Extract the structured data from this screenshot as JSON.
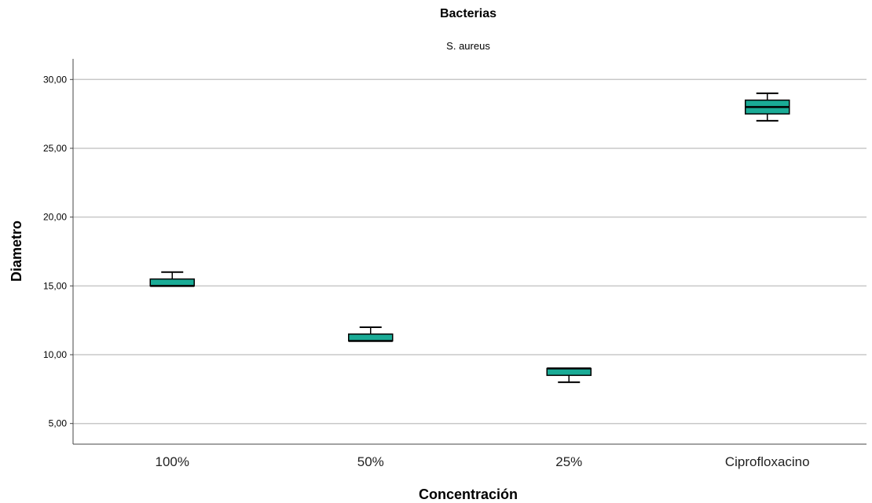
{
  "chart_data": {
    "type": "boxplot",
    "title": "Bacterias",
    "subtitle": "S. aureus",
    "xlabel": "Concentración",
    "ylabel": "Diametro",
    "ylim": [
      3.5,
      31.5
    ],
    "y_ticks": [
      5,
      10,
      15,
      20,
      25,
      30
    ],
    "y_tick_labels": [
      "5,00",
      "10,00",
      "15,00",
      "20,00",
      "25,00",
      "30,00"
    ],
    "grid": true,
    "grid_axis": "y",
    "categories": [
      "100%",
      "50%",
      "25%",
      "Ciprofloxacino"
    ],
    "boxes": [
      {
        "category": "100%",
        "whisker_low": 15,
        "q1": 15,
        "median": 15,
        "q3": 15.5,
        "whisker_high": 16
      },
      {
        "category": "50%",
        "whisker_low": 11,
        "q1": 11,
        "median": 11,
        "q3": 11.5,
        "whisker_high": 12
      },
      {
        "category": "25%",
        "whisker_low": 8,
        "q1": 8.5,
        "median": 9,
        "q3": 9,
        "whisker_high": 9
      },
      {
        "category": "Ciprofloxacino",
        "whisker_low": 27,
        "q1": 27.5,
        "median": 28,
        "q3": 28.5,
        "whisker_high": 29
      }
    ],
    "colors": {
      "box_fill": "#1aab96",
      "box_stroke": "#000000",
      "gridline": "#c8c8c8",
      "axis": "#444444"
    }
  }
}
